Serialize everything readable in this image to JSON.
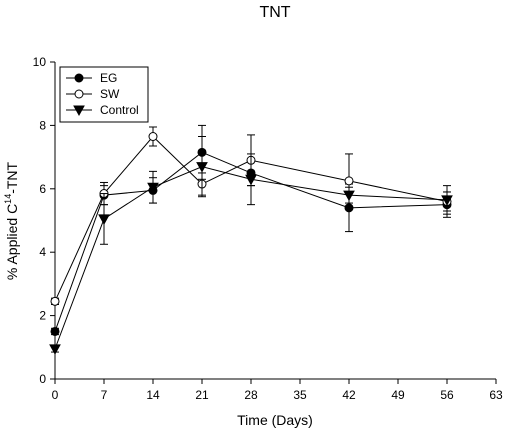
{
  "chart_data": {
    "type": "line",
    "title": "TNT",
    "xlabel": "Time (Days)",
    "ylabel_prefix": "% Applied C",
    "ylabel_sup": "14",
    "ylabel_suffix": "-TNT",
    "xlim": [
      0,
      63
    ],
    "ylim": [
      0,
      10
    ],
    "xticks": [
      0,
      7,
      14,
      21,
      28,
      35,
      42,
      49,
      56,
      63
    ],
    "yticks": [
      0,
      2,
      4,
      6,
      8,
      10
    ],
    "legend_position": "top-left",
    "grid": false,
    "series": [
      {
        "name": "EG",
        "marker": "filled-circle",
        "x": [
          0,
          7,
          14,
          21,
          28,
          42,
          56
        ],
        "y": [
          1.5,
          5.8,
          5.95,
          7.15,
          6.5,
          5.4,
          5.5
        ],
        "err": [
          0.1,
          0.3,
          0.4,
          0.85,
          0.4,
          0.75,
          0.4
        ]
      },
      {
        "name": "SW",
        "marker": "open-circle",
        "x": [
          0,
          7,
          14,
          21,
          28,
          42,
          56
        ],
        "y": [
          2.45,
          5.85,
          7.65,
          6.15,
          6.9,
          6.25,
          5.6
        ],
        "err": [
          0.1,
          0.35,
          0.3,
          0.35,
          0.8,
          0.85,
          0.3
        ]
      },
      {
        "name": "Control",
        "marker": "filled-triangle-down",
        "x": [
          0,
          7,
          14,
          21,
          28,
          42,
          56
        ],
        "y": [
          0.95,
          5.05,
          6.05,
          6.7,
          6.3,
          5.8,
          5.65
        ],
        "err": [
          0.1,
          0.8,
          0.5,
          0.95,
          0.8,
          0.25,
          0.45
        ]
      }
    ]
  }
}
